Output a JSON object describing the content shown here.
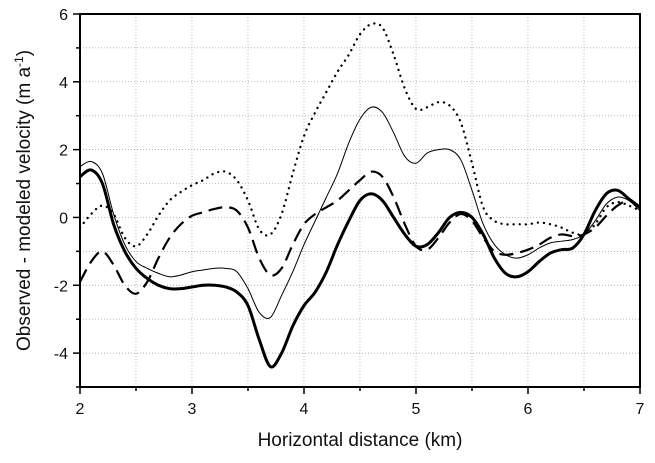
{
  "chart_data": {
    "type": "line",
    "xlabel": "Horizontal distance (km)",
    "ylabel_main": "Observed - modeled velocity (m a",
    "ylabel_sup": "-1",
    "ylabel_end": ")",
    "xlim": [
      2,
      7
    ],
    "ylim": [
      -5,
      6
    ],
    "xticks": [
      2,
      3,
      4,
      5,
      6,
      7
    ],
    "yticks": [
      -4,
      -2,
      0,
      2,
      4,
      6
    ],
    "grid": true,
    "series": [
      {
        "style": "dotted",
        "x": [
          2.0,
          2.1,
          2.2,
          2.3,
          2.4,
          2.5,
          2.6,
          2.7,
          2.8,
          2.9,
          3.0,
          3.1,
          3.2,
          3.3,
          3.4,
          3.5,
          3.6,
          3.7,
          3.8,
          3.9,
          4.0,
          4.1,
          4.2,
          4.3,
          4.4,
          4.5,
          4.6,
          4.7,
          4.8,
          4.9,
          5.0,
          5.1,
          5.2,
          5.3,
          5.4,
          5.5,
          5.6,
          5.7,
          5.8,
          5.9,
          6.0,
          6.1,
          6.2,
          6.3,
          6.4,
          6.5,
          6.6,
          6.7,
          6.8,
          6.9,
          7.0
        ],
        "y": [
          -0.3,
          0.1,
          0.35,
          0.1,
          -0.6,
          -0.85,
          -0.5,
          0.05,
          0.5,
          0.75,
          0.95,
          1.1,
          1.3,
          1.35,
          1.1,
          0.5,
          -0.35,
          -0.5,
          0.1,
          1.3,
          2.4,
          3.1,
          3.7,
          4.3,
          4.8,
          5.4,
          5.7,
          5.6,
          4.8,
          3.8,
          3.2,
          3.25,
          3.4,
          3.3,
          2.8,
          1.6,
          0.3,
          -0.1,
          -0.2,
          -0.2,
          -0.2,
          -0.15,
          -0.2,
          -0.3,
          -0.45,
          -0.5,
          -0.2,
          0.3,
          0.45,
          0.35,
          0.2
        ]
      },
      {
        "style": "thin",
        "x": [
          2.0,
          2.1,
          2.2,
          2.3,
          2.4,
          2.5,
          2.6,
          2.7,
          2.8,
          2.9,
          3.0,
          3.1,
          3.2,
          3.3,
          3.4,
          3.5,
          3.6,
          3.7,
          3.8,
          3.9,
          4.0,
          4.1,
          4.2,
          4.3,
          4.4,
          4.5,
          4.6,
          4.7,
          4.8,
          4.9,
          5.0,
          5.1,
          5.2,
          5.3,
          5.4,
          5.5,
          5.6,
          5.7,
          5.8,
          5.9,
          6.0,
          6.1,
          6.2,
          6.3,
          6.4,
          6.5,
          6.6,
          6.7,
          6.8,
          6.9,
          7.0
        ],
        "y": [
          1.5,
          1.65,
          1.3,
          0.1,
          -0.8,
          -1.3,
          -1.5,
          -1.65,
          -1.75,
          -1.7,
          -1.6,
          -1.55,
          -1.5,
          -1.5,
          -1.6,
          -2.1,
          -2.8,
          -2.95,
          -2.3,
          -1.6,
          -0.8,
          -0.1,
          0.6,
          1.3,
          2.2,
          2.9,
          3.25,
          3.1,
          2.5,
          1.8,
          1.6,
          1.9,
          2.0,
          2.0,
          1.7,
          0.8,
          -0.2,
          -0.8,
          -1.1,
          -1.2,
          -1.1,
          -0.9,
          -0.75,
          -0.7,
          -0.65,
          -0.5,
          -0.1,
          0.4,
          0.6,
          0.5,
          0.2
        ]
      },
      {
        "style": "dashed",
        "x": [
          2.0,
          2.1,
          2.2,
          2.3,
          2.4,
          2.5,
          2.6,
          2.7,
          2.8,
          2.9,
          3.0,
          3.1,
          3.2,
          3.3,
          3.4,
          3.5,
          3.6,
          3.7,
          3.8,
          3.9,
          4.0,
          4.1,
          4.2,
          4.3,
          4.4,
          4.5,
          4.6,
          4.7,
          4.8,
          4.9,
          5.0,
          5.1,
          5.2,
          5.3,
          5.4,
          5.5,
          5.6,
          5.7,
          5.8,
          5.9,
          6.0,
          6.1,
          6.2,
          6.3,
          6.4,
          6.5,
          6.6,
          6.7,
          6.8,
          6.9,
          7.0
        ],
        "y": [
          -1.9,
          -1.3,
          -1.0,
          -1.4,
          -2.0,
          -2.25,
          -1.9,
          -1.2,
          -0.6,
          -0.2,
          0.05,
          0.15,
          0.25,
          0.3,
          0.2,
          -0.3,
          -1.2,
          -1.7,
          -1.5,
          -0.8,
          -0.2,
          0.1,
          0.3,
          0.5,
          0.8,
          1.1,
          1.35,
          1.2,
          0.6,
          -0.2,
          -0.85,
          -0.95,
          -0.6,
          -0.15,
          0.1,
          -0.1,
          -0.6,
          -1.0,
          -1.1,
          -1.05,
          -0.95,
          -0.8,
          -0.6,
          -0.5,
          -0.55,
          -0.5,
          -0.3,
          0.05,
          0.35,
          0.5,
          0.3
        ]
      },
      {
        "style": "thick",
        "x": [
          2.0,
          2.1,
          2.2,
          2.3,
          2.4,
          2.5,
          2.6,
          2.7,
          2.8,
          2.9,
          3.0,
          3.1,
          3.2,
          3.3,
          3.4,
          3.5,
          3.6,
          3.7,
          3.8,
          3.9,
          4.0,
          4.1,
          4.2,
          4.3,
          4.4,
          4.5,
          4.6,
          4.7,
          4.8,
          4.9,
          5.0,
          5.1,
          5.2,
          5.3,
          5.4,
          5.5,
          5.6,
          5.7,
          5.8,
          5.9,
          6.0,
          6.1,
          6.2,
          6.3,
          6.4,
          6.5,
          6.6,
          6.7,
          6.8,
          6.9,
          7.0
        ],
        "y": [
          1.2,
          1.4,
          1.0,
          -0.2,
          -1.0,
          -1.5,
          -1.8,
          -2.0,
          -2.1,
          -2.1,
          -2.05,
          -2.0,
          -2.0,
          -2.05,
          -2.2,
          -2.6,
          -3.6,
          -4.4,
          -4.0,
          -3.2,
          -2.6,
          -2.2,
          -1.6,
          -0.8,
          -0.1,
          0.5,
          0.7,
          0.5,
          0.0,
          -0.5,
          -0.85,
          -0.8,
          -0.45,
          0.0,
          0.15,
          0.0,
          -0.5,
          -1.2,
          -1.65,
          -1.75,
          -1.6,
          -1.3,
          -1.05,
          -0.95,
          -0.9,
          -0.5,
          0.2,
          0.7,
          0.8,
          0.55,
          0.3
        ]
      }
    ]
  }
}
